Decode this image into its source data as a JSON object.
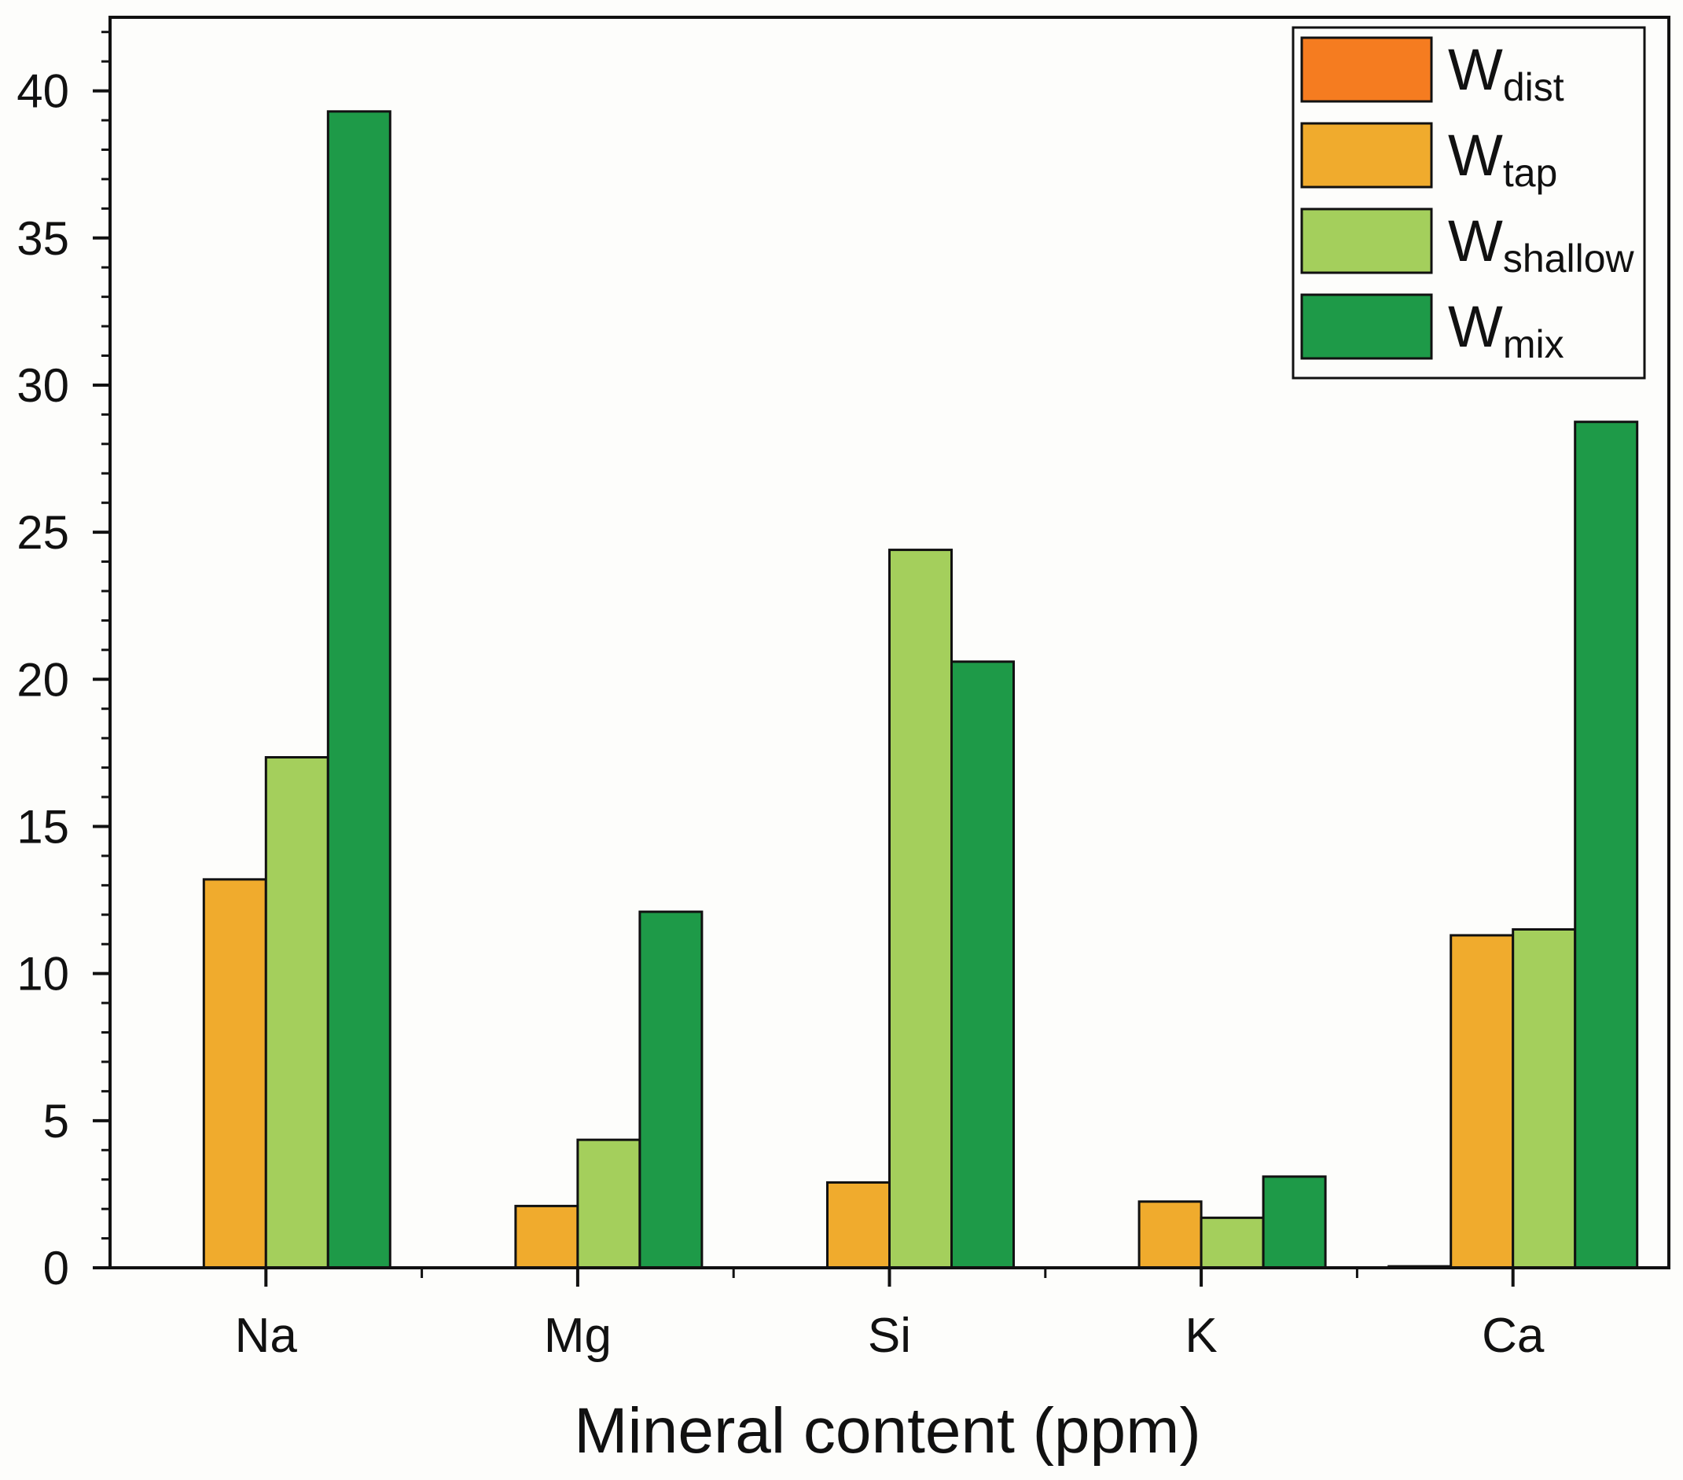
{
  "chart_data": {
    "type": "bar",
    "title": "",
    "xlabel": "Mineral content (ppm)",
    "ylabel": "",
    "categories": [
      "Na",
      "Mg",
      "Si",
      "K",
      "Ca"
    ],
    "ylim": [
      0,
      42.5
    ],
    "yticks": [
      0,
      5,
      10,
      15,
      20,
      25,
      30,
      35,
      40
    ],
    "ytick_labels": [
      "0",
      "5",
      "10",
      "15",
      "20",
      "25",
      "30",
      "35",
      "40"
    ],
    "legend_position": "top-right",
    "series": [
      {
        "name": "W",
        "subscript": "dist",
        "color": "#f57c20",
        "values": [
          0,
          0,
          0,
          0,
          0.05
        ]
      },
      {
        "name": "W",
        "subscript": "tap",
        "color": "#f0ab2d",
        "values": [
          13.2,
          2.1,
          2.9,
          2.25,
          11.3
        ]
      },
      {
        "name": "W",
        "subscript": "shallow",
        "color": "#a4cf5c",
        "values": [
          17.35,
          4.35,
          24.4,
          1.7,
          11.5
        ]
      },
      {
        "name": "W",
        "subscript": "mix",
        "color": "#1e9a48",
        "values": [
          39.3,
          12.1,
          20.6,
          3.1,
          28.75
        ]
      }
    ]
  }
}
